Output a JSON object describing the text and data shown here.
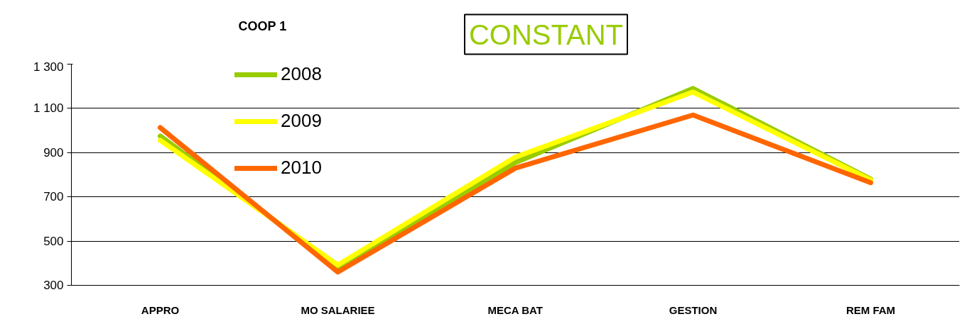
{
  "chart_data": {
    "type": "line",
    "title": "COOP 1",
    "subtitle": "CONSTANT",
    "categories": [
      "APPRO",
      "MO SALARIEE",
      "MECA BAT",
      "GESTION",
      "REM FAM"
    ],
    "series": [
      {
        "name": "2008",
        "color": "#99cc00",
        "values": [
          975,
          382,
          855,
          1190,
          780
        ]
      },
      {
        "name": "2009",
        "color": "#ffff00",
        "values": [
          956,
          392,
          880,
          1174,
          776
        ]
      },
      {
        "name": "2010",
        "color": "#ff6600",
        "values": [
          1013,
          360,
          830,
          1070,
          764
        ]
      }
    ],
    "ylim": [
      300,
      1300
    ],
    "yticks": [
      300,
      500,
      700,
      900,
      {
        "value": 1100,
        "label": "1 100"
      },
      {
        "value": 1300,
        "label": "1 300"
      }
    ],
    "grid": "y",
    "legend": "top left",
    "marker": "none",
    "line_style": "solid"
  }
}
